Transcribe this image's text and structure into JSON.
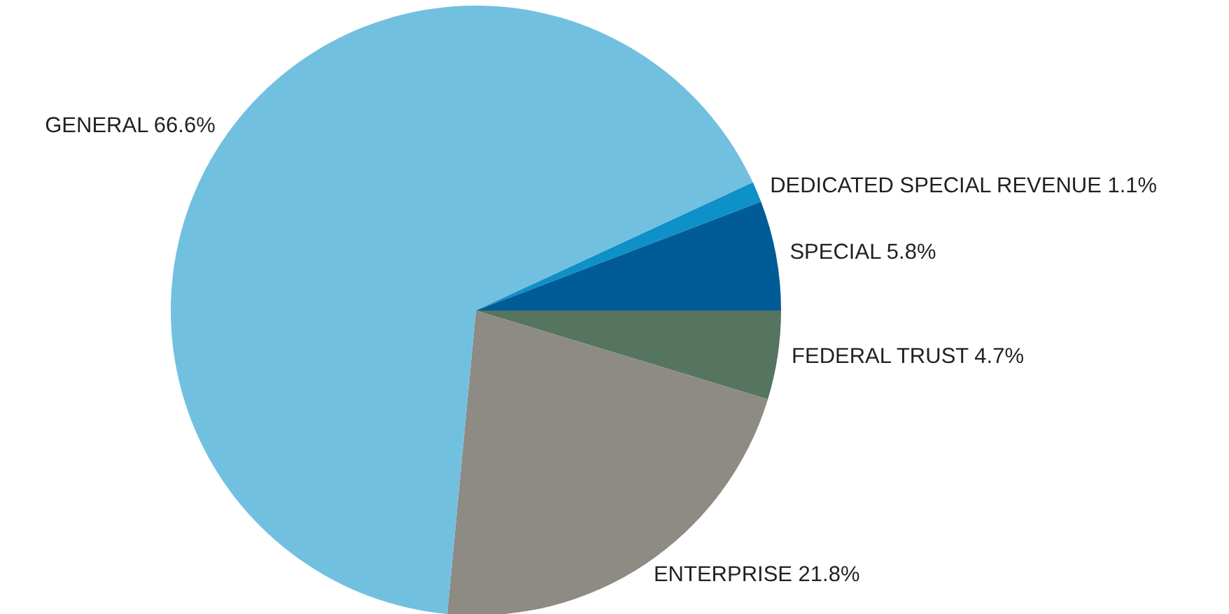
{
  "chart_data": {
    "type": "pie",
    "categories": [
      "FEDERAL TRUST",
      "ENTERPRISE",
      "GENERAL",
      "DEDICATED SPECIAL REVENUE",
      "SPECIAL"
    ],
    "values": [
      4.7,
      21.8,
      66.6,
      1.1,
      5.8
    ],
    "value_labels": [
      "4.7%",
      "21.8%",
      "66.6%",
      "1.1%",
      "5.8%"
    ],
    "colors": [
      "#557560",
      "#8e8a84",
      "#72c0e0",
      "#0e90c8",
      "#005b96"
    ]
  }
}
